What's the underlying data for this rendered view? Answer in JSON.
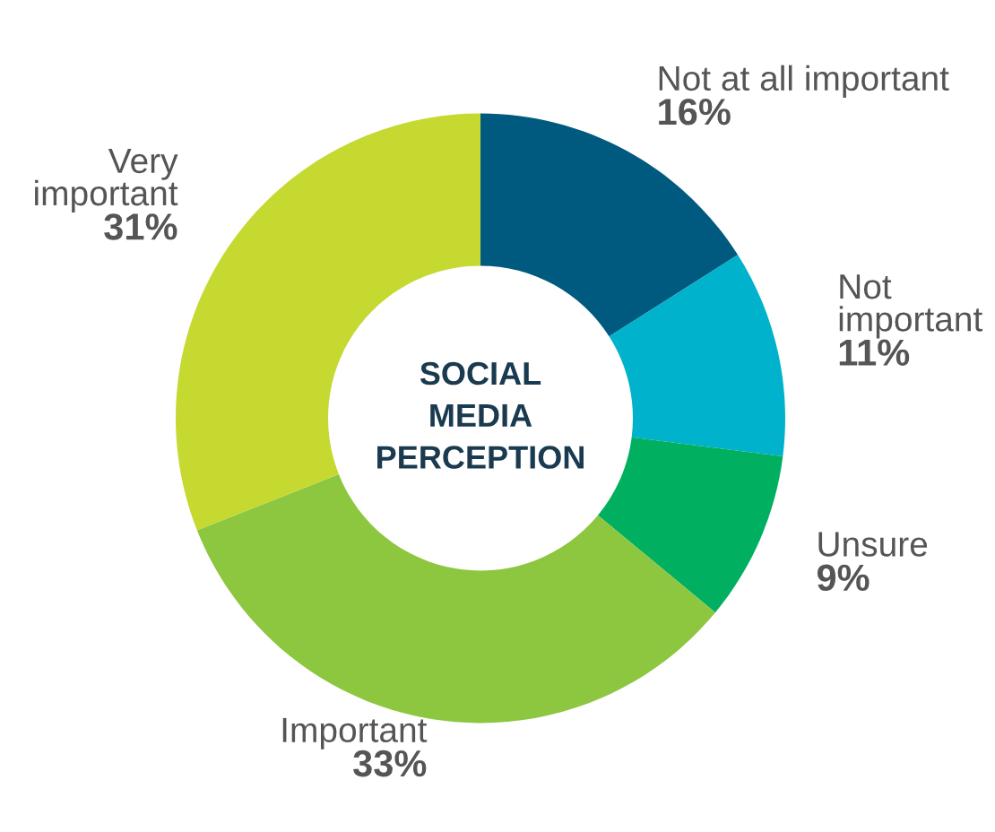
{
  "chart_data": {
    "type": "donut",
    "title": "SOCIAL\nMEDIA\nPERCEPTION",
    "categories": [
      "Not at all important",
      "Not\nimportant",
      "Unsure",
      "Important",
      "Very\nimportant"
    ],
    "values": [
      16,
      11,
      9,
      33,
      31
    ],
    "colors": [
      "#005a7f",
      "#00b2cc",
      "#00b060",
      "#8dc63f",
      "#c5d930"
    ],
    "value_labels": [
      "16%",
      "11%",
      "9%",
      "33%",
      "31%"
    ]
  }
}
